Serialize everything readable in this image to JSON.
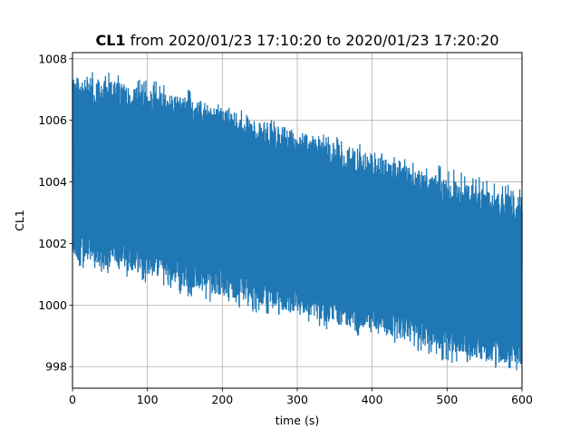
{
  "chart_data": {
    "type": "line",
    "title_bold": "CL1",
    "title_rest": " from 2020/01/23 17:10:20 to 2020/01/23 17:20:20",
    "xlabel": "time (s)",
    "ylabel": "CL1",
    "xlim": [
      0,
      600
    ],
    "ylim": [
      997.3,
      1008.2
    ],
    "xticks": [
      0,
      100,
      200,
      300,
      400,
      500,
      600
    ],
    "yticks": [
      998,
      1000,
      1002,
      1004,
      1006,
      1008
    ],
    "grid": true,
    "legend": "none",
    "series_color": "#1f77b4",
    "series": [
      {
        "x": [
          0,
          50,
          100,
          150,
          200,
          250,
          300,
          350,
          400,
          450,
          500,
          550,
          600
        ],
        "upper": [
          1007.5,
          1007.3,
          1007.0,
          1006.8,
          1006.4,
          1006.0,
          1005.7,
          1005.3,
          1004.9,
          1004.5,
          1004.1,
          1003.8,
          1003.5
        ],
        "lower": [
          1001.5,
          1001.2,
          1001.0,
          1000.6,
          1000.3,
          1000.0,
          999.7,
          999.4,
          999.1,
          998.8,
          998.5,
          998.2,
          998.0
        ],
        "peak_high": [
          1007.7,
          1007.6,
          1007.3,
          1007.2,
          1006.6,
          1006.1,
          1005.8,
          1005.5,
          1005.1,
          1004.7,
          1004.5,
          1004.1,
          1003.8
        ],
        "peak_low": [
          1001.2,
          1001.0,
          1000.7,
          1000.3,
          1000.0,
          999.7,
          999.4,
          999.1,
          998.9,
          998.6,
          998.1,
          998.0,
          997.8
        ]
      }
    ]
  }
}
